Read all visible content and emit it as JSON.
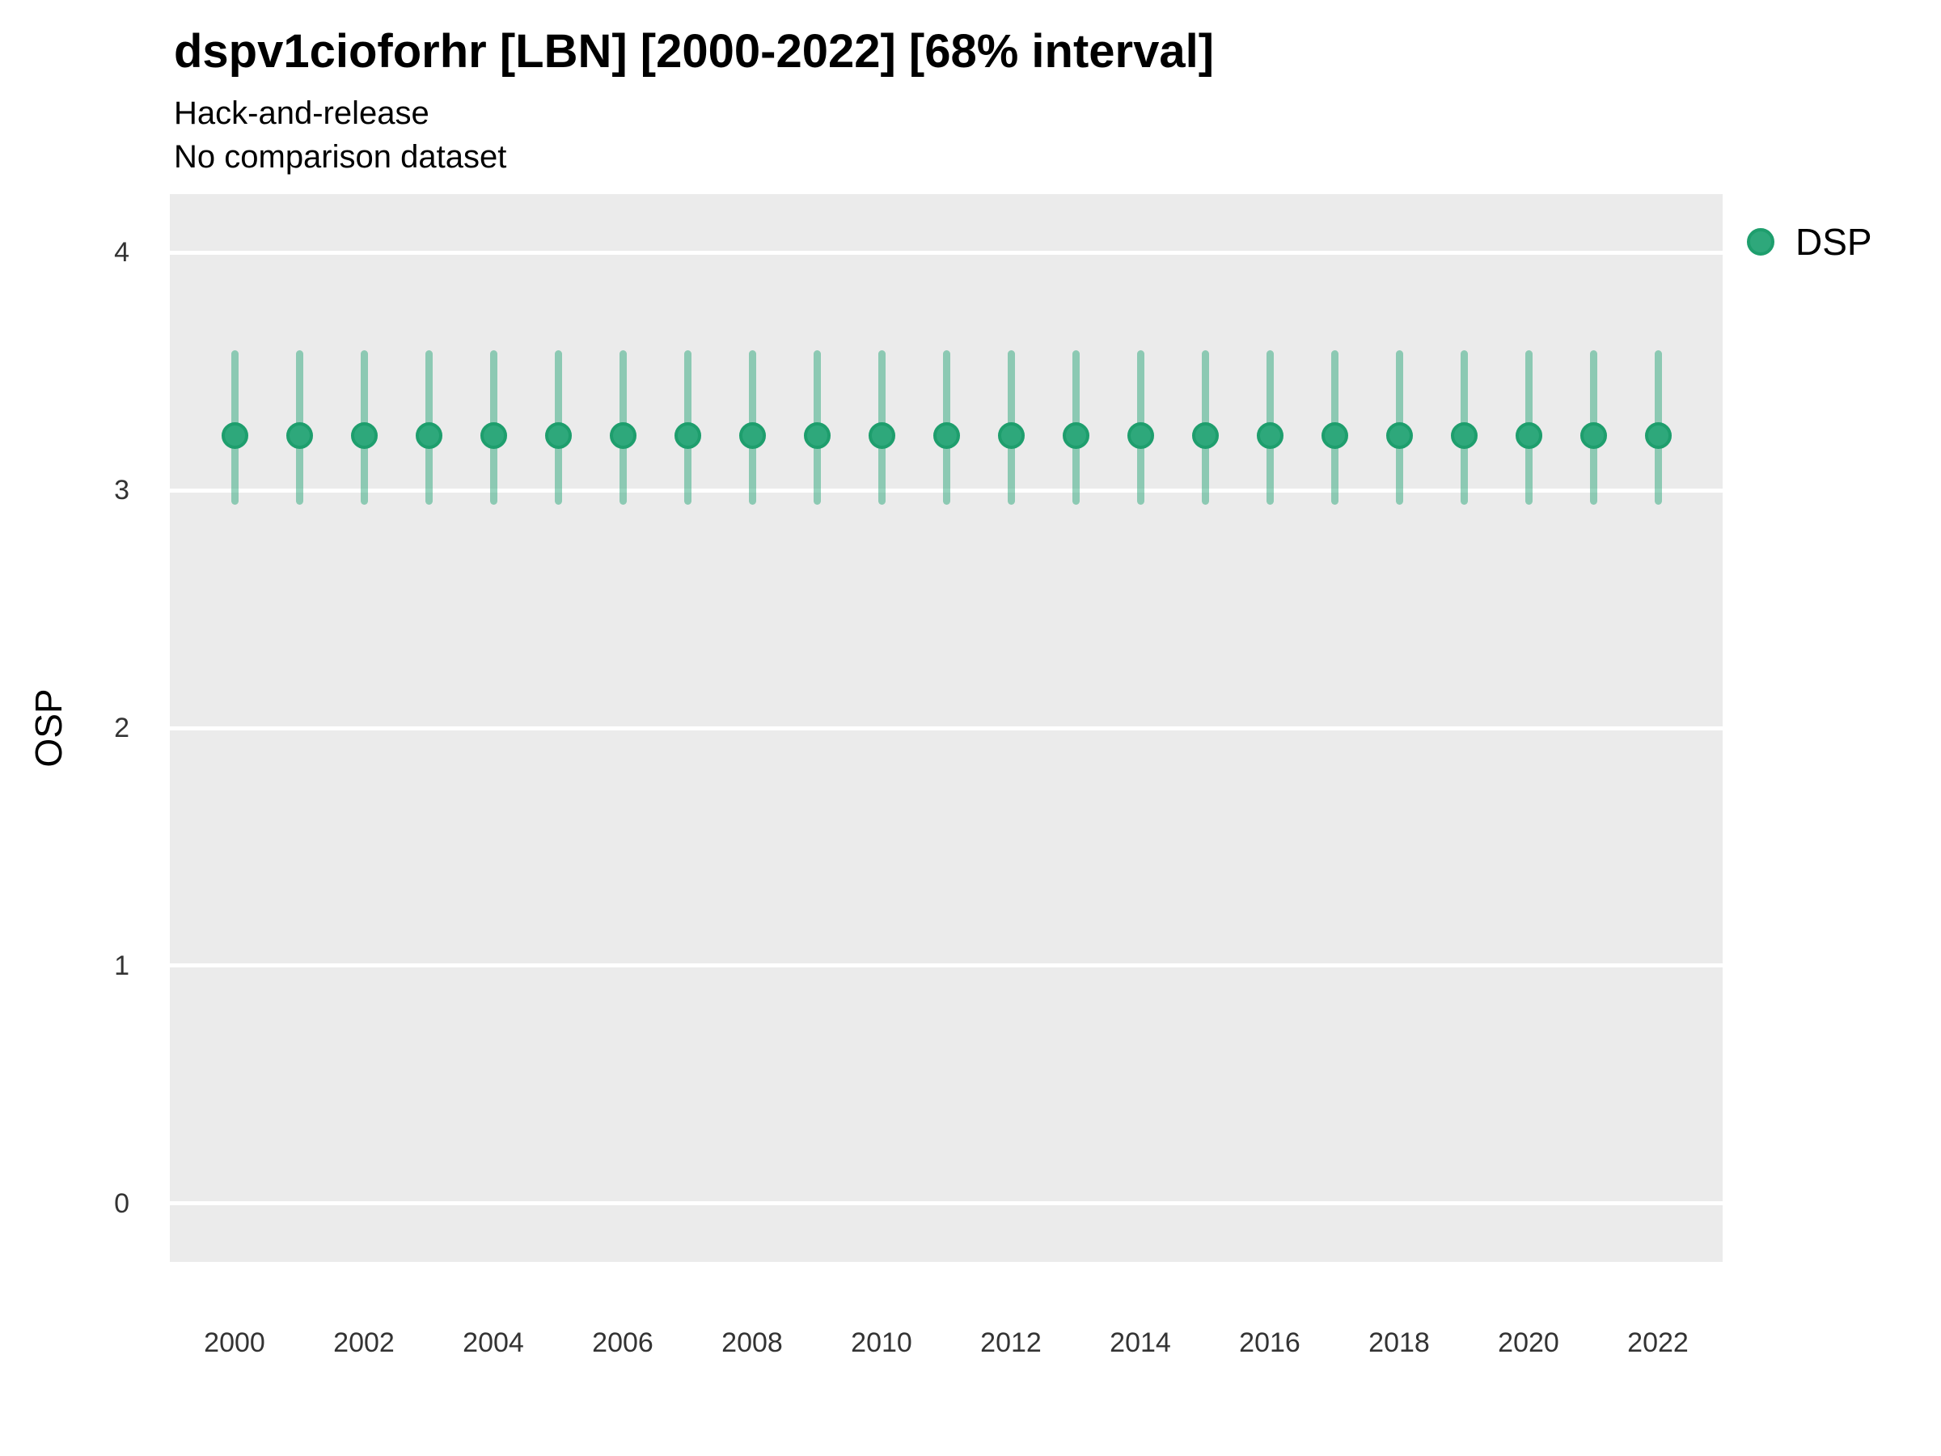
{
  "chart_data": {
    "type": "pointrange",
    "title": "dspv1cioforhr [LBN] [2000-2022] [68% interval]",
    "subtitle": "Hack-and-release",
    "note": "No comparison dataset",
    "ylabel": "OSP",
    "xlabel": "",
    "x": [
      2000,
      2001,
      2002,
      2003,
      2004,
      2005,
      2006,
      2007,
      2008,
      2009,
      2010,
      2011,
      2012,
      2013,
      2014,
      2015,
      2016,
      2017,
      2018,
      2019,
      2020,
      2021,
      2022
    ],
    "series": [
      {
        "name": "DSP",
        "values": [
          3.23,
          3.23,
          3.23,
          3.23,
          3.23,
          3.23,
          3.23,
          3.23,
          3.23,
          3.23,
          3.23,
          3.23,
          3.23,
          3.23,
          3.23,
          3.23,
          3.23,
          3.23,
          3.23,
          3.23,
          3.23,
          3.23,
          3.23
        ],
        "lower": [
          2.94,
          2.94,
          2.94,
          2.94,
          2.94,
          2.94,
          2.94,
          2.94,
          2.94,
          2.94,
          2.94,
          2.94,
          2.94,
          2.94,
          2.94,
          2.94,
          2.94,
          2.94,
          2.94,
          2.94,
          2.94,
          2.94,
          2.94
        ],
        "upper": [
          3.59,
          3.59,
          3.59,
          3.59,
          3.59,
          3.59,
          3.59,
          3.59,
          3.59,
          3.59,
          3.59,
          3.59,
          3.59,
          3.59,
          3.59,
          3.59,
          3.59,
          3.59,
          3.59,
          3.59,
          3.59,
          3.59,
          3.59
        ]
      }
    ],
    "interval_label": "68% interval",
    "xticks": [
      2000,
      2002,
      2004,
      2006,
      2008,
      2010,
      2012,
      2014,
      2016,
      2018,
      2020,
      2022
    ],
    "yticks": [
      0,
      1,
      2,
      3,
      4
    ],
    "xlim": [
      1999,
      2023
    ],
    "ylim": [
      -0.245,
      4.245
    ],
    "grid": "horizontal-major-only",
    "legend_position": "right-top",
    "colors": {
      "point_fill": "#2EA87B",
      "point_border": "#1E9E6D",
      "interval": "rgba(46,168,123,0.5)",
      "panel_bg": "#EBEBEB",
      "grid_line": "#FFFFFF",
      "tick_text": "#333333",
      "title_text": "#000000"
    }
  }
}
